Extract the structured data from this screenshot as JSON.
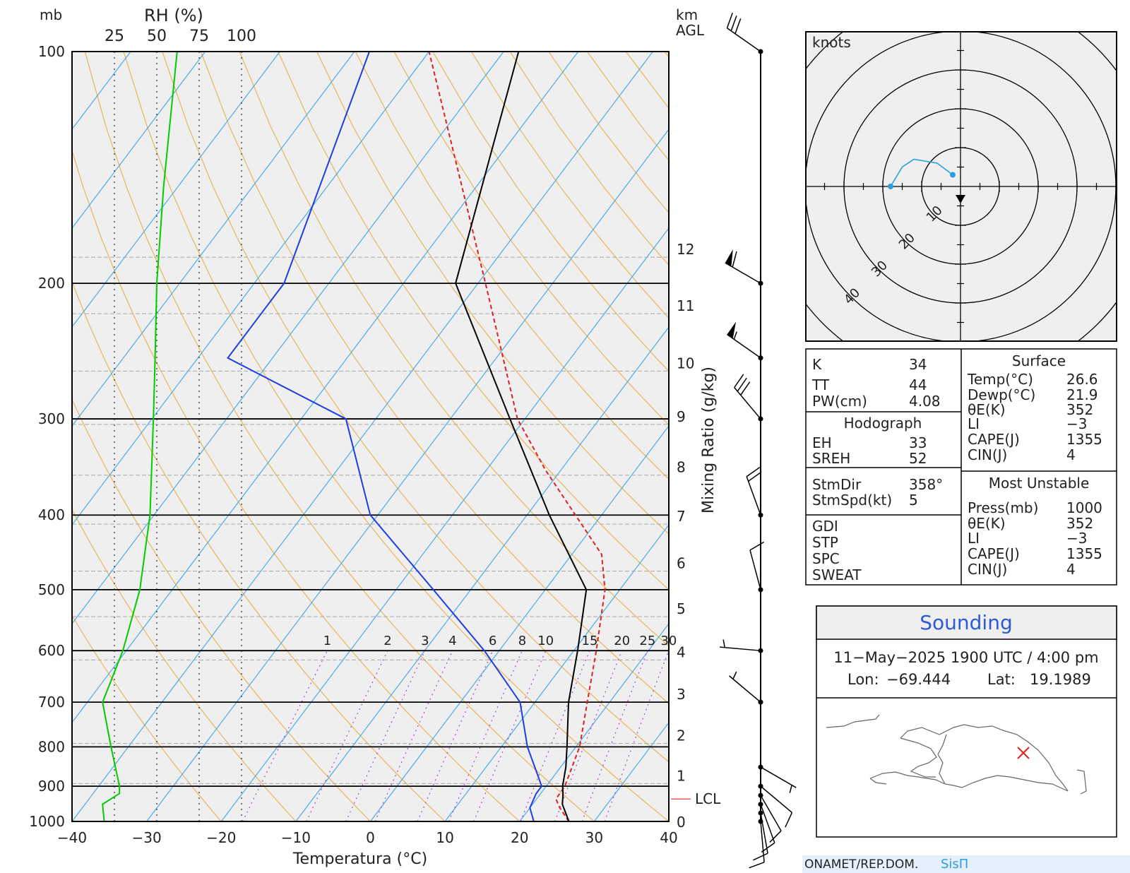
{
  "chart_data": {
    "type": "skew-t",
    "axes": {
      "pressure_unit": "mb",
      "pressure_levels": [
        100,
        200,
        300,
        400,
        500,
        600,
        700,
        800,
        900,
        1000
      ],
      "temperature_ticks": [
        -40,
        -30,
        -20,
        -10,
        0,
        10,
        20,
        30,
        40
      ],
      "xlabel": "Temperatura (°C)",
      "height_unit": "km",
      "height_unit2": "AGL",
      "heights_km": [
        0,
        1,
        2,
        3,
        4,
        5,
        6,
        7,
        8,
        9,
        10,
        11,
        12
      ],
      "height_pressures": [
        1000,
        893,
        792,
        700,
        617,
        542,
        473,
        411,
        355,
        305,
        260,
        219,
        185
      ],
      "mixing_ratio_label": "Mixing Ratio (g/kg)",
      "mixing_ratio_values": [
        "1",
        "2",
        "3",
        "4",
        "6",
        "8",
        "10",
        "15",
        "20",
        "25",
        "30"
      ],
      "rh_label": "RH (%)",
      "rh_ticks": [
        "25",
        "50",
        "75",
        "100"
      ],
      "lcl_label": "LCL",
      "lcl_pressure": 935
    },
    "series": [
      {
        "name": "Temperature",
        "color": "#000000",
        "points": [
          [
            1000,
            26.6
          ],
          [
            950,
            24
          ],
          [
            920,
            23
          ],
          [
            900,
            22.2
          ],
          [
            850,
            20.7
          ],
          [
            800,
            18.8
          ],
          [
            700,
            14.5
          ],
          [
            600,
            10.5
          ],
          [
            500,
            5.5
          ],
          [
            400,
            -7
          ],
          [
            300,
            -22
          ],
          [
            200,
            -43
          ],
          [
            100,
            -58
          ]
        ]
      },
      {
        "name": "Dew point",
        "color": "#1d3ee0",
        "points": [
          [
            1000,
            21.9
          ],
          [
            960,
            20
          ],
          [
            920,
            19.4
          ],
          [
            900,
            19.4
          ],
          [
            800,
            13.5
          ],
          [
            700,
            8
          ],
          [
            600,
            -2
          ],
          [
            500,
            -15
          ],
          [
            400,
            -31
          ],
          [
            300,
            -44
          ],
          [
            250,
            -66
          ],
          [
            200,
            -66
          ],
          [
            100,
            -78
          ]
        ]
      },
      {
        "name": "Parcel",
        "color": "#e02020",
        "style": "dashed",
        "points": [
          [
            1000,
            26.6
          ],
          [
            960,
            24
          ],
          [
            935,
            22.6
          ],
          [
            900,
            22.5
          ],
          [
            800,
            20.5
          ],
          [
            700,
            17
          ],
          [
            600,
            13
          ],
          [
            500,
            8
          ],
          [
            450,
            4
          ],
          [
            350,
            -12
          ],
          [
            300,
            -21
          ],
          [
            200,
            -39
          ],
          [
            100,
            -70
          ]
        ]
      },
      {
        "name": "RH",
        "color": "#00cc00",
        "unit": "%",
        "points": [
          [
            1000,
            19
          ],
          [
            950,
            18
          ],
          [
            920,
            28
          ],
          [
            900,
            28
          ],
          [
            800,
            23
          ],
          [
            700,
            18
          ],
          [
            600,
            30
          ],
          [
            500,
            40
          ],
          [
            400,
            46
          ],
          [
            300,
            48
          ],
          [
            250,
            49
          ],
          [
            200,
            50
          ],
          [
            150,
            54
          ],
          [
            100,
            62
          ]
        ]
      }
    ],
    "wind_barbs": [
      {
        "pressure": 1000,
        "dir": 175,
        "speed": 10
      },
      {
        "pressure": 975,
        "dir": 170,
        "speed": 10
      },
      {
        "pressure": 950,
        "dir": 160,
        "speed": 10
      },
      {
        "pressure": 925,
        "dir": 150,
        "speed": 10
      },
      {
        "pressure": 900,
        "dir": 130,
        "speed": 10
      },
      {
        "pressure": 850,
        "dir": 120,
        "speed": 5
      },
      {
        "pressure": 700,
        "dir": 310,
        "speed": 5
      },
      {
        "pressure": 600,
        "dir": 275,
        "speed": 5
      },
      {
        "pressure": 500,
        "dir": 345,
        "speed": 10
      },
      {
        "pressure": 400,
        "dir": 340,
        "speed": 20
      },
      {
        "pressure": 300,
        "dir": 320,
        "speed": 30
      },
      {
        "pressure": 250,
        "dir": 305,
        "speed": 55
      },
      {
        "pressure": 200,
        "dir": 300,
        "speed": 60
      },
      {
        "pressure": 100,
        "dir": 305,
        "speed": 30
      }
    ]
  },
  "hodograph": {
    "units_label": "knots",
    "ring_labels": [
      "10",
      "20",
      "30",
      "40"
    ],
    "points": [
      [
        -2,
        3
      ],
      [
        -6,
        6
      ],
      [
        -12,
        7
      ],
      [
        -15,
        5
      ],
      [
        -18,
        0
      ]
    ]
  },
  "indices": {
    "k_label": "K",
    "k_value": "34",
    "tt_label": "TT",
    "tt_value": "44",
    "pw_label": "PW(cm)",
    "pw_value": "4.08",
    "hodograph_header": "Hodograph",
    "eh_label": "EH",
    "eh_value": "33",
    "sreh_label": "SREH",
    "sreh_value": "52",
    "stmdir_label": "StmDir",
    "stmdir_value": "358°",
    "stmspd_label": "StmSpd(kt)",
    "stmspd_value": "5",
    "gdi_label": "GDI",
    "stp_label": "STP",
    "spc_label": "SPC",
    "sweat_label": "SWEAT",
    "surface_header": "Surface",
    "sfc_temp_label": "Temp(°C)",
    "sfc_temp_value": "26.6",
    "sfc_dewp_label": "Dewp(°C)",
    "sfc_dewp_value": "21.9",
    "sfc_theta_label": "θE(K)",
    "sfc_theta_value": "352",
    "sfc_li_label": "LI",
    "sfc_li_value": "−3",
    "sfc_cape_label": "CAPE(J)",
    "sfc_cape_value": "1355",
    "sfc_cin_label": "CIN(J)",
    "sfc_cin_value": "4",
    "mu_header": "Most Unstable",
    "mu_press_label": "Press(mb)",
    "mu_press_value": "1000",
    "mu_theta_label": "θE(K)",
    "mu_theta_value": "352",
    "mu_li_label": "LI",
    "mu_li_value": "−3",
    "mu_cape_label": "CAPE(J)",
    "mu_cape_value": "1355",
    "mu_cin_label": "CIN(J)",
    "mu_cin_value": "4"
  },
  "sounding_info": {
    "title": "Sounding",
    "datetime": "11−May−2025 1900  UTC / 4:00 pm",
    "lon_label": "Lon:",
    "lon_value": "−69.444",
    "lat_label": "Lat:",
    "lat_value": "19.1989"
  },
  "footer": {
    "org": "ONAMET/REP.DOM.",
    "brand": "SisΠ"
  },
  "colors": {
    "temperature": "#000000",
    "dewpoint": "#1d3ee0",
    "parcel": "#e02020",
    "rh": "#00cc00",
    "isotherm": "#3aa7e6",
    "dry_adiabat": "#e8b04a",
    "mixing_ratio": "#b040d8",
    "hodograph": "#2a9fe0",
    "title_blue": "#2a5bd8"
  }
}
